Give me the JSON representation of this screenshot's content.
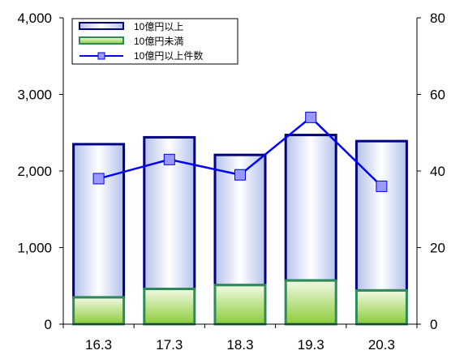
{
  "chart_data": {
    "type": "bar",
    "categories": [
      "16.3",
      "17.3",
      "18.3",
      "19.3",
      "20.3"
    ],
    "series": [
      {
        "name": "10億円以上",
        "type": "stacked-bar",
        "axis": "left",
        "values": [
          2000,
          1980,
          1700,
          1900,
          1950
        ]
      },
      {
        "name": "10億円未満",
        "type": "stacked-bar",
        "axis": "left",
        "values": [
          350,
          460,
          510,
          570,
          440
        ]
      },
      {
        "name": "10億円以上件数",
        "type": "line",
        "axis": "right",
        "values": [
          38,
          43,
          39,
          54,
          36
        ]
      }
    ],
    "left_axis": {
      "ylim": [
        0,
        4000
      ],
      "ticks": [
        "0",
        "1,000",
        "2,000",
        "3,000",
        "4,000"
      ],
      "tick_values": [
        0,
        1000,
        2000,
        3000,
        4000
      ]
    },
    "right_axis": {
      "ylim": [
        0,
        80
      ],
      "ticks": [
        "0",
        "20",
        "40",
        "60",
        "80"
      ],
      "tick_values": [
        0,
        20,
        40,
        60,
        80
      ]
    },
    "legend_position": "top-left",
    "grid": false,
    "colors": {
      "upper_fill_edge": "#b4c1ea",
      "upper_fill_center": "#ffffff",
      "upper_border": "#000080",
      "lower_fill_top": "#f2f9e4",
      "lower_fill_bottom": "#8ccc3a",
      "lower_border": "#2e8b57",
      "line": "#0000ff",
      "marker_fill": "#9999ff",
      "axis": "#000000"
    }
  }
}
